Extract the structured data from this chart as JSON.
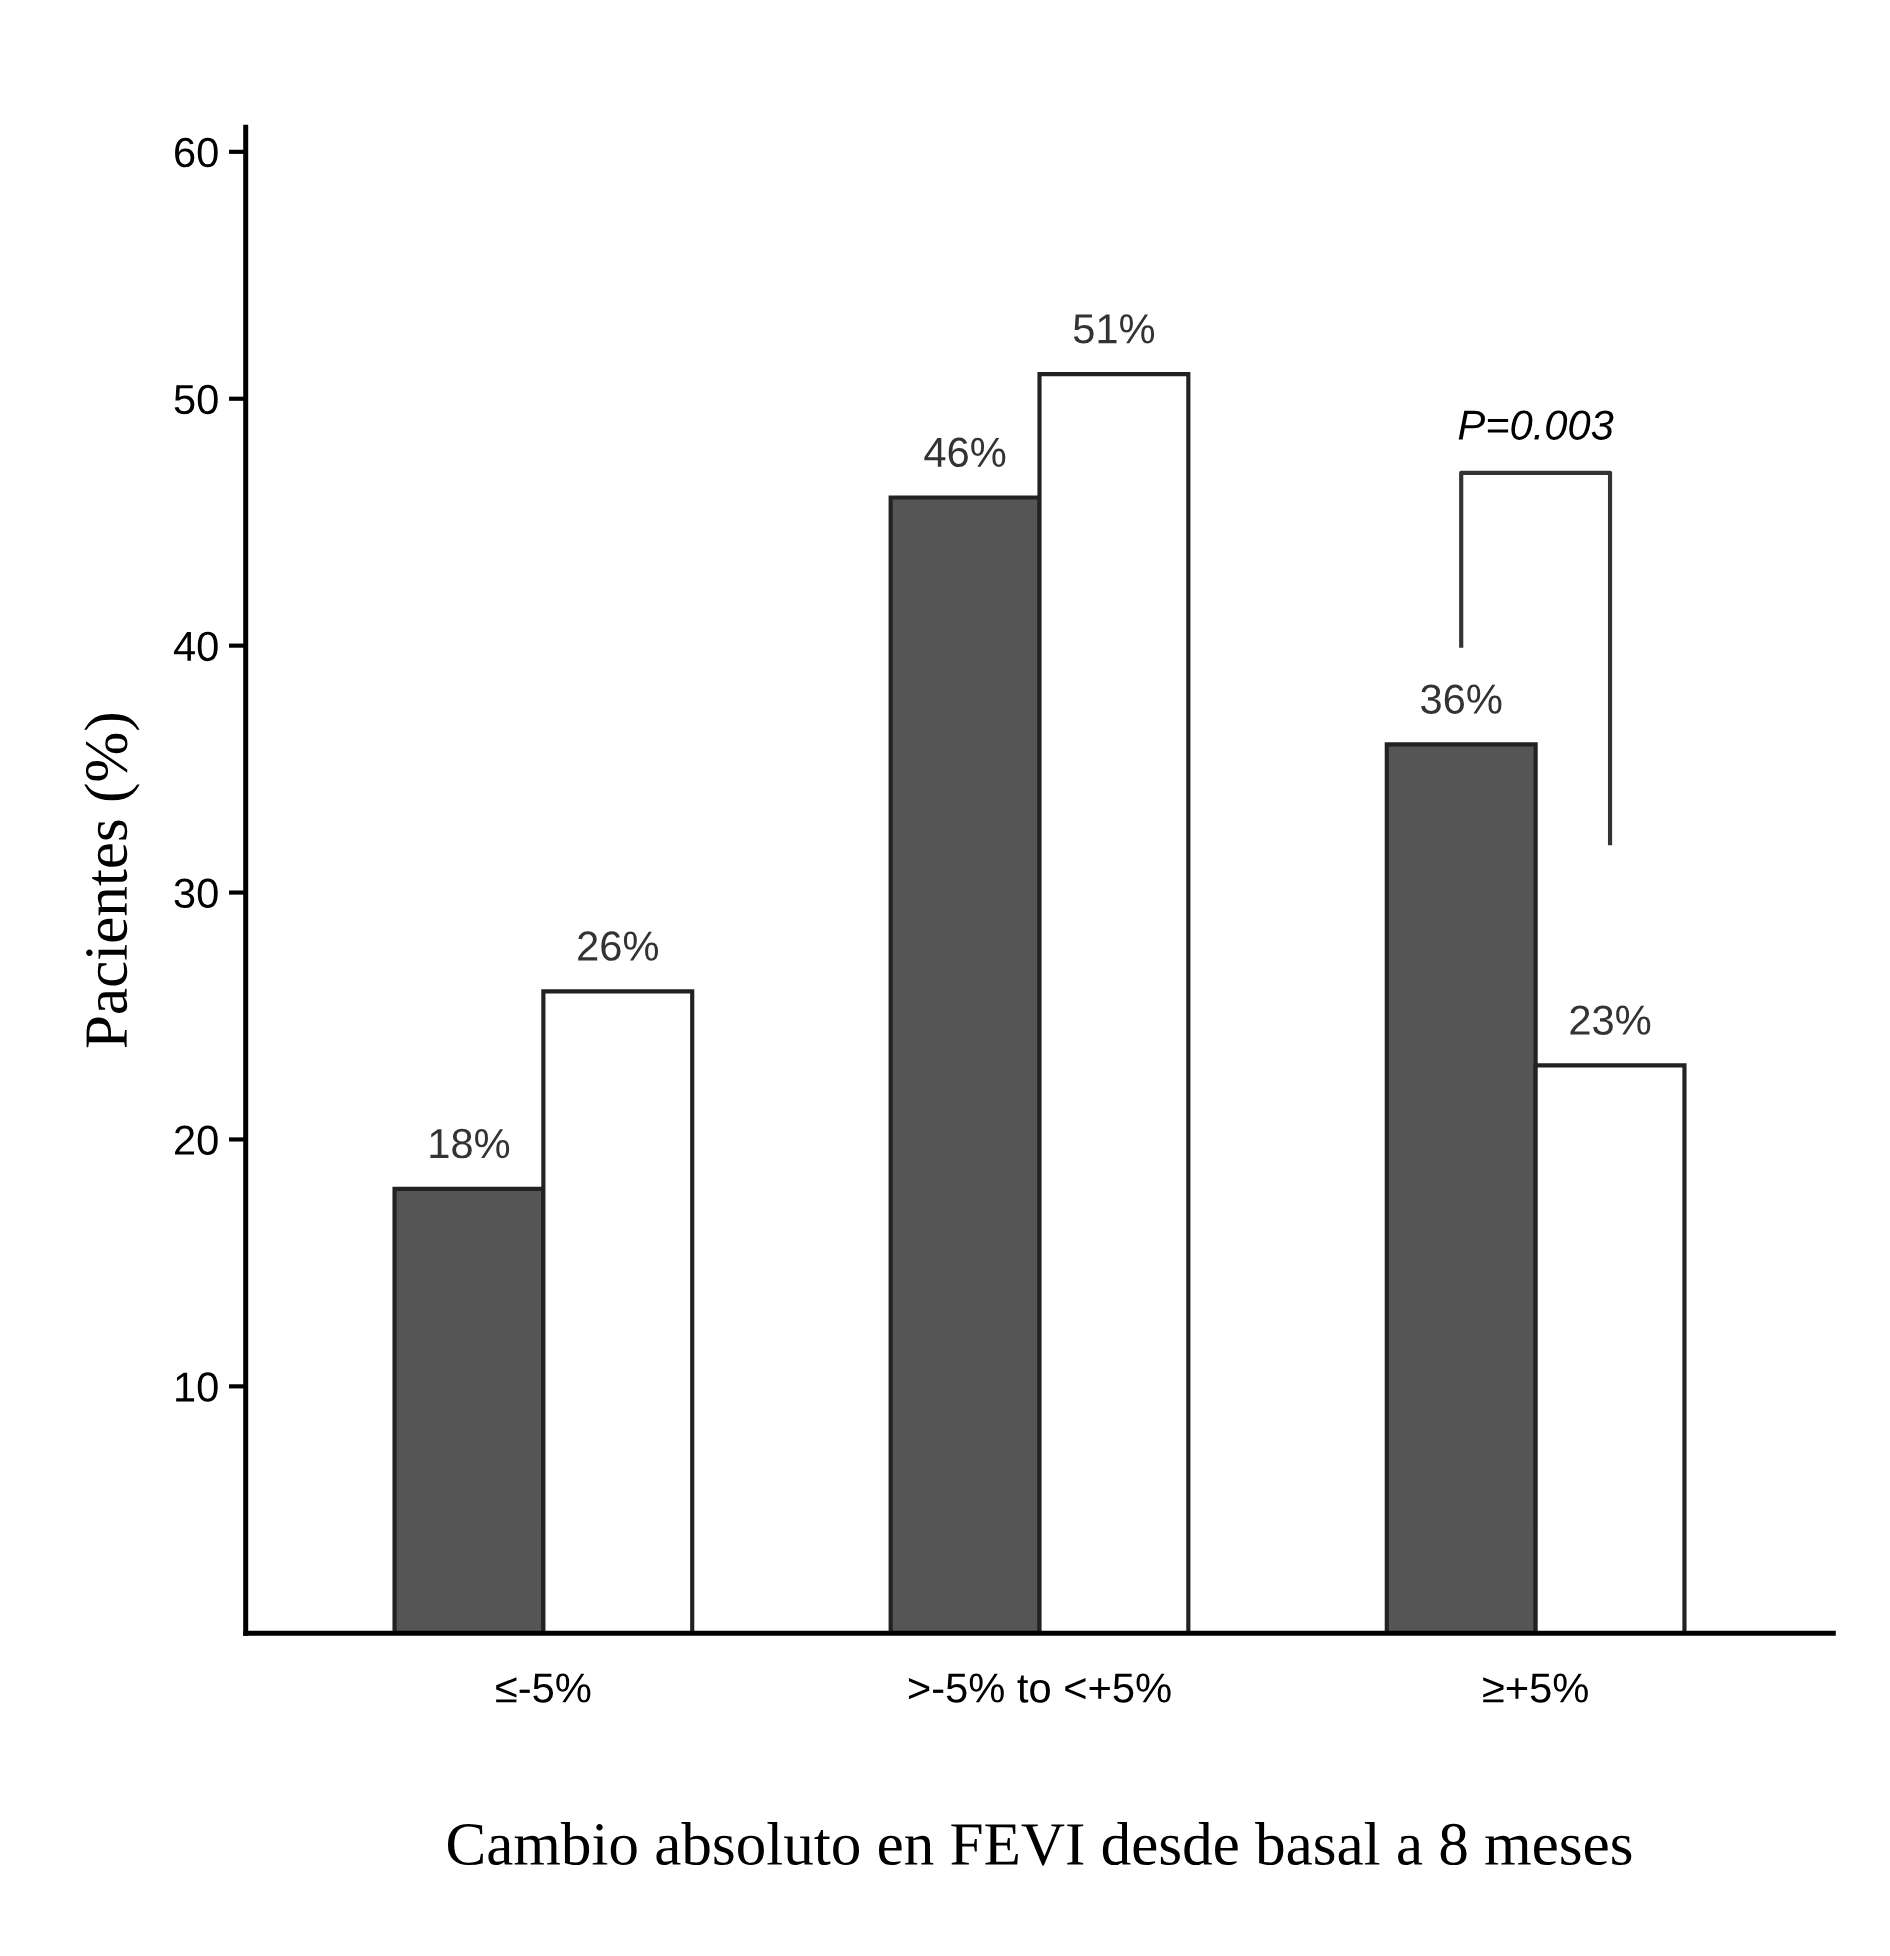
{
  "chart_data": {
    "type": "bar",
    "xlabel": "Cambio absoluto en FEVI desde basal a 8 meses",
    "ylabel": "Pacientes (%)",
    "categories": [
      "≤-5%",
      ">-5% to <+5%",
      "≥+5%"
    ],
    "series": [
      {
        "color": "#555555",
        "values": [
          18,
          46,
          36
        ],
        "value_labels": [
          "18%",
          "46%",
          "36%"
        ]
      },
      {
        "color": "#ffffff",
        "values": [
          26,
          51,
          23
        ],
        "value_labels": [
          "26%",
          "51%",
          "23%"
        ]
      }
    ],
    "ylim": [
      0,
      61
    ],
    "yticks": [
      10,
      20,
      30,
      40,
      50,
      60
    ],
    "grid": false,
    "legend": false,
    "annotations": [
      "P=0.003"
    ]
  }
}
